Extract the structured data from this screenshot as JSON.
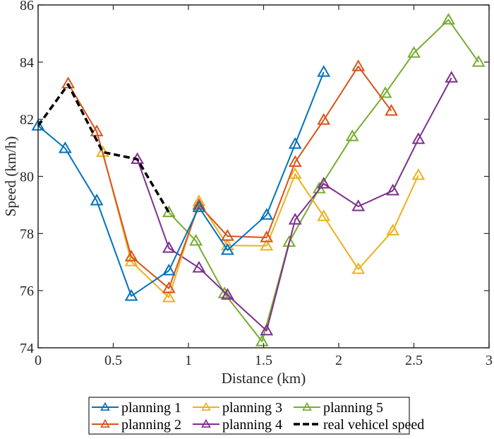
{
  "chart_data": {
    "type": "line",
    "title": "",
    "xlabel": "Distance (km)",
    "ylabel": "Speed (km/h)",
    "xlim": [
      0,
      3
    ],
    "ylim": [
      74,
      86
    ],
    "xticks": [
      0,
      0.5,
      1,
      1.5,
      2,
      2.5,
      3
    ],
    "xtick_labels": [
      "0",
      "0.5",
      "1",
      "1.5",
      "2",
      "2.5",
      "3"
    ],
    "yticks": [
      74,
      76,
      78,
      80,
      82,
      84,
      86
    ],
    "ytick_labels": [
      "74",
      "76",
      "78",
      "80",
      "82",
      "84",
      "86"
    ],
    "grid": false,
    "legend_position": "bottom-outside",
    "series": [
      {
        "name": "planning 1",
        "color": "#0072BD",
        "marker": "triangle",
        "dashed": false,
        "x": [
          0,
          0.18,
          0.39,
          0.62,
          0.87,
          1.07,
          1.26,
          1.52,
          1.71,
          1.9
        ],
        "y": [
          81.77,
          80.98,
          79.15,
          75.81,
          76.7,
          78.92,
          77.42,
          78.65,
          81.13,
          83.65
        ]
      },
      {
        "name": "planning 2",
        "color": "#D95319",
        "marker": "triangle",
        "dashed": false,
        "x": [
          0.2,
          0.39,
          0.62,
          0.87,
          1.07,
          1.26,
          1.52,
          1.71,
          1.9,
          2.13,
          2.35
        ],
        "y": [
          83.25,
          81.57,
          77.19,
          76.08,
          79.0,
          77.91,
          77.86,
          80.5,
          81.97,
          83.85,
          82.29
        ]
      },
      {
        "name": "planning 3",
        "color": "#EDB120",
        "marker": "triangle",
        "dashed": false,
        "x": [
          0.43,
          0.62,
          0.87,
          1.07,
          1.26,
          1.52,
          1.71,
          1.9,
          2.13,
          2.36,
          2.53
        ],
        "y": [
          80.85,
          77.02,
          75.76,
          79.12,
          77.58,
          77.57,
          80.08,
          78.6,
          76.75,
          78.1,
          80.04
        ]
      },
      {
        "name": "planning 4",
        "color": "#7E2F8E",
        "marker": "triangle",
        "dashed": false,
        "x": [
          0.66,
          0.87,
          1.07,
          1.26,
          1.52,
          1.71,
          1.9,
          2.13,
          2.36,
          2.53,
          2.75
        ],
        "y": [
          80.6,
          77.49,
          76.8,
          75.85,
          74.6,
          78.48,
          79.74,
          78.95,
          79.5,
          81.3,
          83.45
        ]
      },
      {
        "name": "planning 5",
        "color": "#77AC30",
        "marker": "triangle",
        "dashed": false,
        "x": [
          0.87,
          1.05,
          1.24,
          1.49,
          1.67,
          1.87,
          2.09,
          2.31,
          2.5,
          2.73,
          2.93
        ],
        "y": [
          78.74,
          77.74,
          75.9,
          74.22,
          77.7,
          79.57,
          81.4,
          82.91,
          84.32,
          85.48,
          84.0
        ]
      },
      {
        "name": "real vehicel speed",
        "color": "#000000",
        "marker": "none",
        "dashed": true,
        "x": [
          0,
          0.2,
          0.43,
          0.66,
          0.87
        ],
        "y": [
          81.77,
          83.22,
          80.85,
          80.6,
          78.74
        ]
      }
    ],
    "legend": [
      {
        "label": "planning 1",
        "series": 0
      },
      {
        "label": "planning 3",
        "series": 2
      },
      {
        "label": "planning 5",
        "series": 4
      },
      {
        "label": "planning 2",
        "series": 1
      },
      {
        "label": "planning 4",
        "series": 3
      },
      {
        "label": "real vehicel speed",
        "series": 5
      }
    ]
  }
}
